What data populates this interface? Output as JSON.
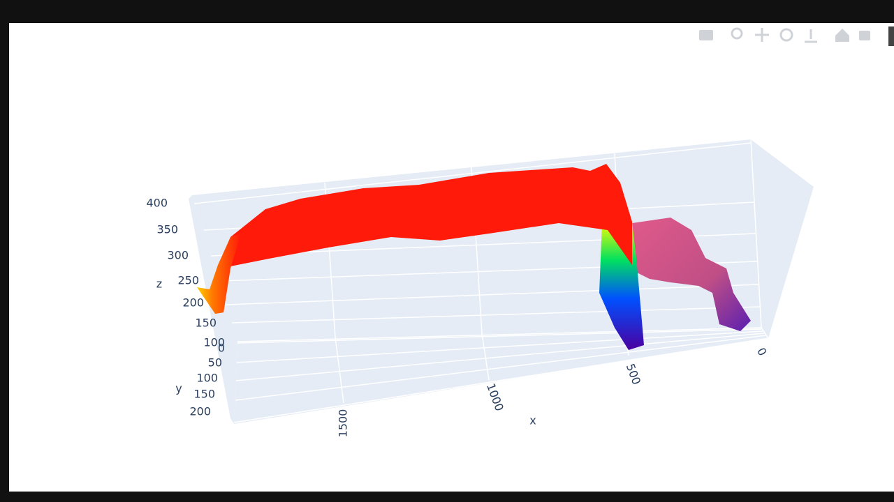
{
  "chart_data": {
    "type": "surface3d",
    "xlabel": "x",
    "ylabel": "y",
    "zlabel": "z",
    "xticks": [
      0,
      500,
      1000,
      1500
    ],
    "yticks": [
      0,
      50,
      100,
      150,
      200
    ],
    "zticks": [
      100,
      150,
      200,
      250,
      300,
      350,
      400
    ],
    "grid": true
  }
}
